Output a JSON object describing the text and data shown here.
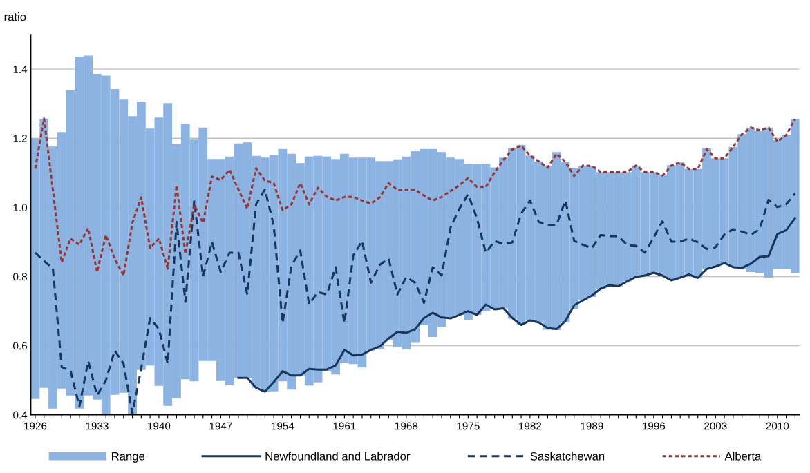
{
  "chart_data": {
    "type": "bar",
    "ylabel": "ratio",
    "categories": [
      "1926",
      null,
      null,
      null,
      null,
      null,
      null,
      "1933",
      null,
      null,
      null,
      null,
      null,
      null,
      "1940",
      null,
      null,
      null,
      null,
      null,
      null,
      "1947",
      null,
      null,
      null,
      null,
      null,
      null,
      "1954",
      null,
      null,
      null,
      null,
      null,
      null,
      "1961",
      null,
      null,
      null,
      null,
      null,
      null,
      "1968",
      null,
      null,
      null,
      null,
      null,
      null,
      "1975",
      null,
      null,
      null,
      null,
      null,
      null,
      "1982",
      null,
      null,
      null,
      null,
      null,
      null,
      "1989",
      null,
      null,
      null,
      null,
      null,
      null,
      "1996",
      null,
      null,
      null,
      null,
      null,
      null,
      "2003",
      null,
      null,
      null,
      null,
      null,
      null,
      "2010",
      null,
      null
    ],
    "series": [
      {
        "name": "Range",
        "color": "#8db3e2",
        "base": [
          0.446,
          0.478,
          0.418,
          0.476,
          0.456,
          0.418,
          0.456,
          0.444,
          0.4,
          0.458,
          0.464,
          0.4,
          0.53,
          0.543,
          0.484,
          0.426,
          0.448,
          0.503,
          0.497,
          0.556,
          0.556,
          0.498,
          0.486,
          0.507,
          0.507,
          0.478,
          0.467,
          0.468,
          0.497,
          0.473,
          0.514,
          0.485,
          0.494,
          0.527,
          0.517,
          0.55,
          0.547,
          0.537,
          0.586,
          0.591,
          0.616,
          0.596,
          0.589,
          0.608,
          0.659,
          0.625,
          0.655,
          0.679,
          0.689,
          0.673,
          0.689,
          0.7,
          0.705,
          0.708,
          0.678,
          0.66,
          0.673,
          0.667,
          0.646,
          0.645,
          0.667,
          0.707,
          0.731,
          0.741,
          0.765,
          0.772,
          0.772,
          0.786,
          0.799,
          0.803,
          0.811,
          0.803,
          0.789,
          0.797,
          0.806,
          0.796,
          0.821,
          0.829,
          0.839,
          0.827,
          0.823,
          0.813,
          0.81,
          0.797,
          0.822,
          0.822,
          0.81
        ],
        "values": [
          0.753,
          0.779,
          0.758,
          0.742,
          0.882,
          1.018,
          0.983,
          0.942,
          0.981,
          0.884,
          0.848,
          0.864,
          0.775,
          0.685,
          0.776,
          0.876,
          0.735,
          0.738,
          0.699,
          0.675,
          0.584,
          0.642,
          0.661,
          0.678,
          0.681,
          0.671,
          0.677,
          0.684,
          0.672,
          0.682,
          0.614,
          0.662,
          0.655,
          0.62,
          0.623,
          0.605,
          0.597,
          0.607,
          0.558,
          0.543,
          0.518,
          0.543,
          0.558,
          0.555,
          0.51,
          0.544,
          0.505,
          0.465,
          0.451,
          0.453,
          0.436,
          0.426,
          0.41,
          0.436,
          0.493,
          0.521,
          0.477,
          0.466,
          0.475,
          0.515,
          0.465,
          0.406,
          0.39,
          0.379,
          0.337,
          0.33,
          0.33,
          0.316,
          0.322,
          0.299,
          0.291,
          0.292,
          0.333,
          0.333,
          0.305,
          0.315,
          0.35,
          0.313,
          0.303,
          0.348,
          0.389,
          0.418,
          0.413,
          0.434,
          0.373,
          0.388,
          0.446
        ]
      },
      {
        "name": "Newfoundland and Labrador",
        "type": "line",
        "line_style": "solid",
        "color": "#17375e",
        "values": [
          null,
          null,
          null,
          null,
          null,
          null,
          null,
          null,
          null,
          null,
          null,
          null,
          null,
          null,
          null,
          null,
          null,
          null,
          null,
          null,
          null,
          null,
          null,
          0.507,
          0.507,
          0.478,
          0.467,
          0.495,
          0.526,
          0.514,
          0.514,
          0.533,
          0.531,
          0.531,
          0.543,
          0.588,
          0.572,
          0.574,
          0.588,
          0.598,
          0.621,
          0.64,
          0.637,
          0.648,
          0.68,
          0.695,
          0.682,
          0.679,
          0.689,
          0.7,
          0.689,
          0.719,
          0.705,
          0.708,
          0.68,
          0.66,
          0.673,
          0.667,
          0.651,
          0.648,
          0.671,
          0.717,
          0.731,
          0.745,
          0.765,
          0.775,
          0.772,
          0.786,
          0.799,
          0.803,
          0.811,
          0.803,
          0.789,
          0.797,
          0.806,
          0.796,
          0.822,
          0.829,
          0.839,
          0.827,
          0.825,
          0.837,
          0.857,
          0.859,
          0.923,
          0.934,
          0.969
        ]
      },
      {
        "name": "Saskatchewan",
        "type": "line",
        "line_style": "dashed",
        "color": "#17375e",
        "values": [
          0.869,
          0.845,
          0.823,
          0.538,
          0.528,
          0.424,
          0.556,
          0.456,
          0.5,
          0.586,
          0.548,
          0.404,
          0.534,
          0.68,
          0.648,
          0.548,
          0.958,
          0.727,
          1.02,
          0.8,
          0.9,
          0.813,
          0.869,
          0.869,
          0.748,
          1.009,
          1.052,
          0.948,
          0.665,
          0.831,
          0.875,
          0.72,
          0.755,
          0.748,
          0.827,
          0.665,
          0.861,
          0.903,
          0.782,
          0.834,
          0.852,
          0.748,
          0.799,
          0.782,
          0.724,
          0.827,
          0.803,
          0.941,
          0.996,
          1.038,
          0.968,
          0.869,
          0.903,
          0.894,
          0.899,
          0.982,
          1.02,
          0.958,
          0.949,
          0.949,
          1.02,
          0.903,
          0.892,
          0.882,
          0.92,
          0.917,
          0.917,
          0.891,
          0.889,
          0.869,
          0.913,
          0.96,
          0.901,
          0.901,
          0.91,
          0.899,
          0.88,
          0.885,
          0.921,
          0.937,
          0.93,
          0.921,
          0.937,
          1.022,
          1.001,
          1.009,
          1.04
        ]
      },
      {
        "name": "Alberta",
        "type": "line",
        "line_style": "dotted",
        "color": "#953735",
        "values": [
          1.112,
          1.257,
          1.05,
          0.841,
          0.91,
          0.892,
          0.94,
          0.813,
          0.92,
          0.851,
          0.803,
          0.955,
          1.029,
          0.882,
          0.91,
          0.823,
          1.064,
          0.865,
          1.007,
          0.955,
          1.089,
          1.079,
          1.109,
          1.052,
          0.996,
          1.113,
          1.078,
          1.07,
          0.992,
          1.009,
          1.07,
          1.009,
          1.057,
          1.031,
          1.02,
          1.03,
          1.03,
          1.02,
          1.011,
          1.029,
          1.07,
          1.051,
          1.051,
          1.051,
          1.034,
          1.02,
          1.03,
          1.047,
          1.064,
          1.085,
          1.059,
          1.059,
          1.102,
          1.137,
          1.168,
          1.178,
          1.15,
          1.133,
          1.115,
          1.155,
          1.132,
          1.091,
          1.121,
          1.12,
          1.102,
          1.102,
          1.102,
          1.102,
          1.121,
          1.102,
          1.102,
          1.092,
          1.121,
          1.13,
          1.111,
          1.111,
          1.168,
          1.142,
          1.142,
          1.175,
          1.212,
          1.231,
          1.223,
          1.231,
          1.19,
          1.209,
          1.256
        ]
      }
    ],
    "ylim": [
      0.4,
      1.5
    ],
    "yticks": [
      0.4,
      0.6,
      0.8,
      {
        "value": 1.0,
        "label": "1.0"
      },
      1.2,
      1.4
    ],
    "grid": "y",
    "legend": "bottom"
  }
}
